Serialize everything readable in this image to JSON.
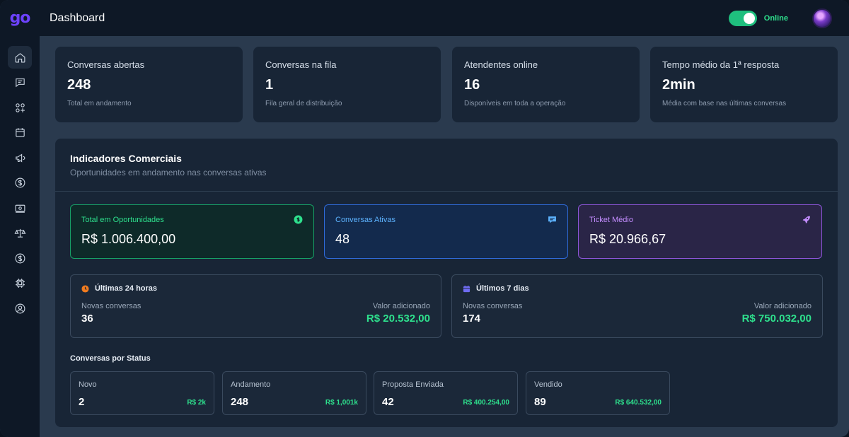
{
  "app": {
    "logo": "go",
    "page_title": "Dashboard"
  },
  "header": {
    "status_label": "Online",
    "toggle_on": true,
    "accent": "#1fbf7e"
  },
  "sidebar": {
    "items": [
      {
        "icon": "home-icon",
        "active": true
      },
      {
        "icon": "chat-icon"
      },
      {
        "icon": "apps-add-icon"
      },
      {
        "icon": "calendar-icon"
      },
      {
        "icon": "megaphone-icon"
      },
      {
        "icon": "dollar-circle-icon"
      },
      {
        "icon": "banknote-icon"
      },
      {
        "icon": "scale-icon"
      },
      {
        "icon": "dollar-circle-icon"
      },
      {
        "icon": "chip-icon"
      },
      {
        "icon": "user-circle-icon"
      }
    ]
  },
  "kpis": [
    {
      "title": "Conversas abertas",
      "value": "248",
      "subtitle": "Total em andamento"
    },
    {
      "title": "Conversas na fila",
      "value": "1",
      "subtitle": "Fila geral de distribuição"
    },
    {
      "title": "Atendentes online",
      "value": "16",
      "subtitle": "Disponíveis em toda a operação"
    },
    {
      "title": "Tempo médio da 1ª resposta",
      "value": "2min",
      "subtitle": "Média com base nas últimas conversas"
    }
  ],
  "commercial": {
    "title": "Indicadores Comerciais",
    "subtitle": "Oportunidades em andamento nas conversas ativas",
    "metrics": [
      {
        "label": "Total em Oportunidades",
        "value": "R$ 1.006.400,00",
        "icon": "dollar-circle-icon",
        "color": "#2ee08d"
      },
      {
        "label": "Conversas Ativas",
        "value": "48",
        "icon": "chat-bubble-icon",
        "color": "#5db3ff"
      },
      {
        "label": "Ticket Médio",
        "value": "R$ 20.966,67",
        "icon": "rocket-icon",
        "color": "#c48dff"
      }
    ],
    "periods": [
      {
        "title": "Últimas 24 horas",
        "icon": "clock-icon",
        "new_label": "Novas conversas",
        "new_value": "36",
        "added_label": "Valor adicionado",
        "added_value": "R$ 20.532,00"
      },
      {
        "title": "Últimos 7 dias",
        "icon": "calendar-icon",
        "new_label": "Novas conversas",
        "new_value": "174",
        "added_label": "Valor adicionado",
        "added_value": "R$ 750.032,00"
      }
    ],
    "status_title": "Conversas por Status",
    "statuses": [
      {
        "name": "Novo",
        "count": "2",
        "amount": "R$ 2k"
      },
      {
        "name": "Andamento",
        "count": "248",
        "amount": "R$ 1,001k"
      },
      {
        "name": "Proposta Enviada",
        "count": "42",
        "amount": "R$ 400.254,00"
      },
      {
        "name": "Vendido",
        "count": "89",
        "amount": "R$ 640.532,00"
      }
    ]
  }
}
